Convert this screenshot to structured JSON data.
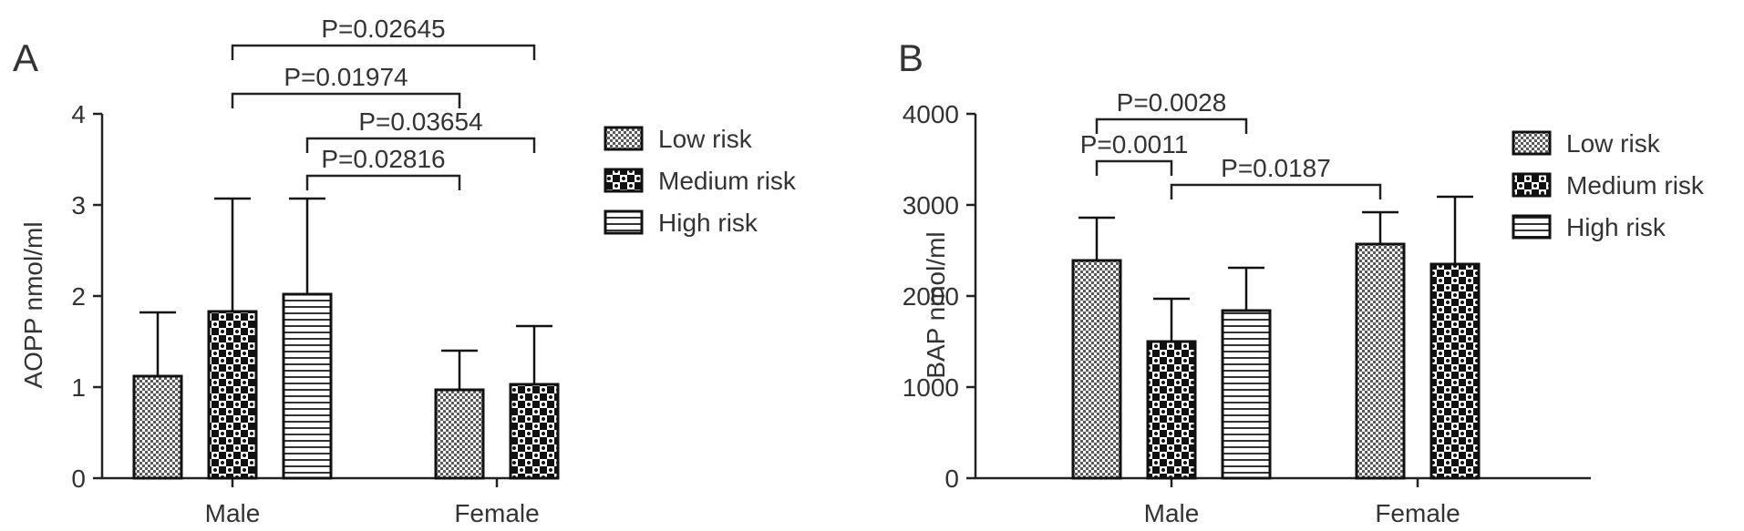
{
  "chart_data": [
    {
      "panel_label": "A",
      "type": "bar",
      "ylabel": "AOPP nmol/ml",
      "ylim": [
        0,
        4
      ],
      "yticks": [
        "0",
        "1",
        "2",
        "3",
        "4"
      ],
      "categories": [
        "Male",
        "Female"
      ],
      "series": [
        {
          "name": "Low risk",
          "values": [
            1.12,
            0.97
          ],
          "errors": [
            0.7,
            0.43
          ],
          "pattern": "fine-check"
        },
        {
          "name": "Medium risk",
          "values": [
            1.83,
            1.03
          ],
          "errors": [
            1.24,
            0.64
          ],
          "pattern": "large-check"
        },
        {
          "name": "High risk",
          "values": [
            2.02,
            null
          ],
          "errors": [
            1.05,
            null
          ],
          "pattern": "horizontal-lines"
        }
      ],
      "legend_position": "right",
      "annotations": [
        {
          "text": "P=0.02645",
          "from": {
            "series": 1,
            "category": 0
          },
          "to": {
            "series": 1,
            "category": 1
          }
        },
        {
          "text": "P=0.01974",
          "from": {
            "series": 1,
            "category": 0
          },
          "to": {
            "series": 0,
            "category": 1
          }
        },
        {
          "text": "P=0.03654",
          "from": {
            "series": 2,
            "category": 0
          },
          "to": {
            "series": 1,
            "category": 1
          }
        },
        {
          "text": "P=0.02816",
          "from": {
            "series": 2,
            "category": 0
          },
          "to": {
            "series": 0,
            "category": 1
          }
        }
      ]
    },
    {
      "panel_label": "B",
      "type": "bar",
      "ylabel": "BAP nmol/ml",
      "ylim": [
        0,
        4000
      ],
      "yticks": [
        "0",
        "1000",
        "2000",
        "3000",
        "4000"
      ],
      "categories": [
        "Male",
        "Female"
      ],
      "series": [
        {
          "name": "Low risk",
          "values": [
            2390,
            2570
          ],
          "errors": [
            470,
            350
          ],
          "pattern": "fine-check"
        },
        {
          "name": "Medium risk",
          "values": [
            1500,
            2350
          ],
          "errors": [
            470,
            740
          ],
          "pattern": "large-check"
        },
        {
          "name": "High risk",
          "values": [
            1840,
            null
          ],
          "errors": [
            470,
            null
          ],
          "pattern": "horizontal-lines"
        }
      ],
      "legend_position": "right",
      "annotations": [
        {
          "text": "P=0.0028",
          "from": {
            "series": 0,
            "category": 0
          },
          "to": {
            "series": 2,
            "category": 0
          }
        },
        {
          "text": "P=0.0011",
          "from": {
            "series": 0,
            "category": 0
          },
          "to": {
            "series": 1,
            "category": 0
          }
        },
        {
          "text": "P=0.0187",
          "from": {
            "series": 1,
            "category": 0
          },
          "to": {
            "series": 0,
            "category": 1
          }
        }
      ]
    }
  ]
}
